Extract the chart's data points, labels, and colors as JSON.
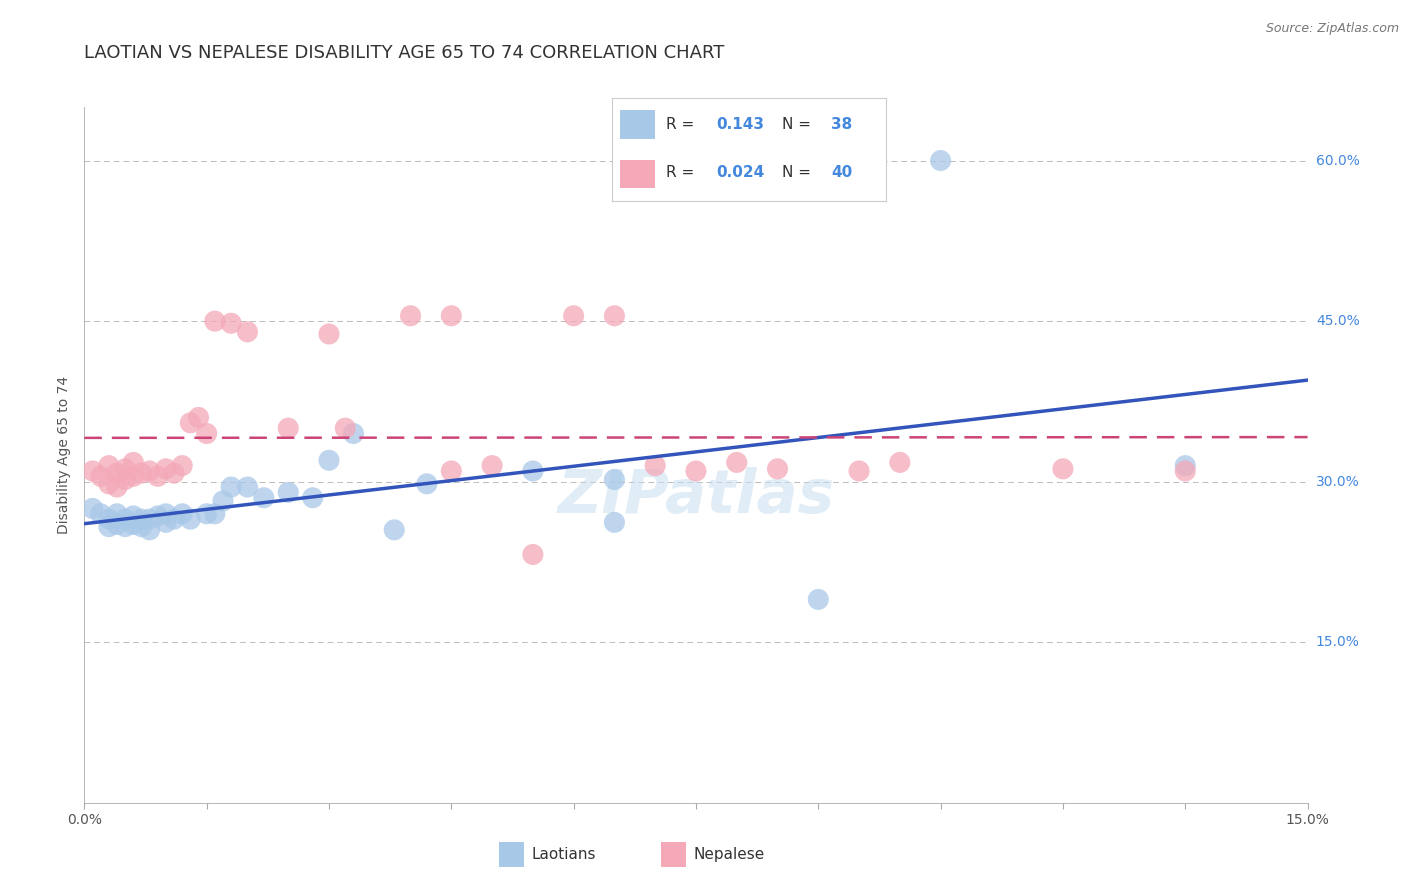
{
  "title": "LAOTIAN VS NEPALESE DISABILITY AGE 65 TO 74 CORRELATION CHART",
  "source": "Source: ZipAtlas.com",
  "ylabel": "Disability Age 65 to 74",
  "xlim": [
    0.0,
    0.15
  ],
  "ylim": [
    0.0,
    0.65
  ],
  "background_color": "#ffffff",
  "laotian_color": "#a8c8e8",
  "nepalese_color": "#f4a8b8",
  "line_blue": "#3355bb",
  "line_pink": "#cc4477",
  "R_laotian": "0.143",
  "N_laotian": "38",
  "R_nepalese": "0.024",
  "N_nepalese": "40",
  "watermark": "ZIPatlas",
  "title_fontsize": 13,
  "label_fontsize": 10,
  "tick_fontsize": 10,
  "accent_color": "#4488dd",
  "laotian_x": [
    0.001,
    0.002,
    0.003,
    0.003,
    0.004,
    0.004,
    0.005,
    0.005,
    0.006,
    0.006,
    0.007,
    0.007,
    0.008,
    0.008,
    0.009,
    0.01,
    0.01,
    0.011,
    0.012,
    0.013,
    0.015,
    0.016,
    0.017,
    0.018,
    0.02,
    0.022,
    0.025,
    0.028,
    0.03,
    0.033,
    0.038,
    0.042,
    0.055,
    0.065,
    0.065,
    0.09,
    0.105,
    0.135
  ],
  "laotian_y": [
    0.275,
    0.27,
    0.265,
    0.258,
    0.27,
    0.26,
    0.265,
    0.258,
    0.268,
    0.26,
    0.265,
    0.258,
    0.265,
    0.255,
    0.268,
    0.27,
    0.262,
    0.265,
    0.27,
    0.265,
    0.27,
    0.27,
    0.282,
    0.295,
    0.295,
    0.285,
    0.29,
    0.285,
    0.32,
    0.345,
    0.255,
    0.298,
    0.31,
    0.302,
    0.262,
    0.19,
    0.6,
    0.315
  ],
  "nepalese_x": [
    0.001,
    0.002,
    0.003,
    0.003,
    0.004,
    0.004,
    0.005,
    0.005,
    0.006,
    0.006,
    0.007,
    0.008,
    0.009,
    0.01,
    0.011,
    0.012,
    0.013,
    0.014,
    0.015,
    0.016,
    0.018,
    0.02,
    0.025,
    0.03,
    0.032,
    0.04,
    0.045,
    0.045,
    0.05,
    0.055,
    0.06,
    0.065,
    0.07,
    0.075,
    0.08,
    0.085,
    0.095,
    0.1,
    0.12,
    0.135
  ],
  "nepalese_y": [
    0.31,
    0.305,
    0.315,
    0.298,
    0.308,
    0.295,
    0.312,
    0.302,
    0.318,
    0.305,
    0.308,
    0.31,
    0.305,
    0.312,
    0.308,
    0.315,
    0.355,
    0.36,
    0.345,
    0.45,
    0.448,
    0.44,
    0.35,
    0.438,
    0.35,
    0.455,
    0.31,
    0.455,
    0.315,
    0.232,
    0.455,
    0.455,
    0.315,
    0.31,
    0.318,
    0.312,
    0.31,
    0.318,
    0.312,
    0.31
  ]
}
